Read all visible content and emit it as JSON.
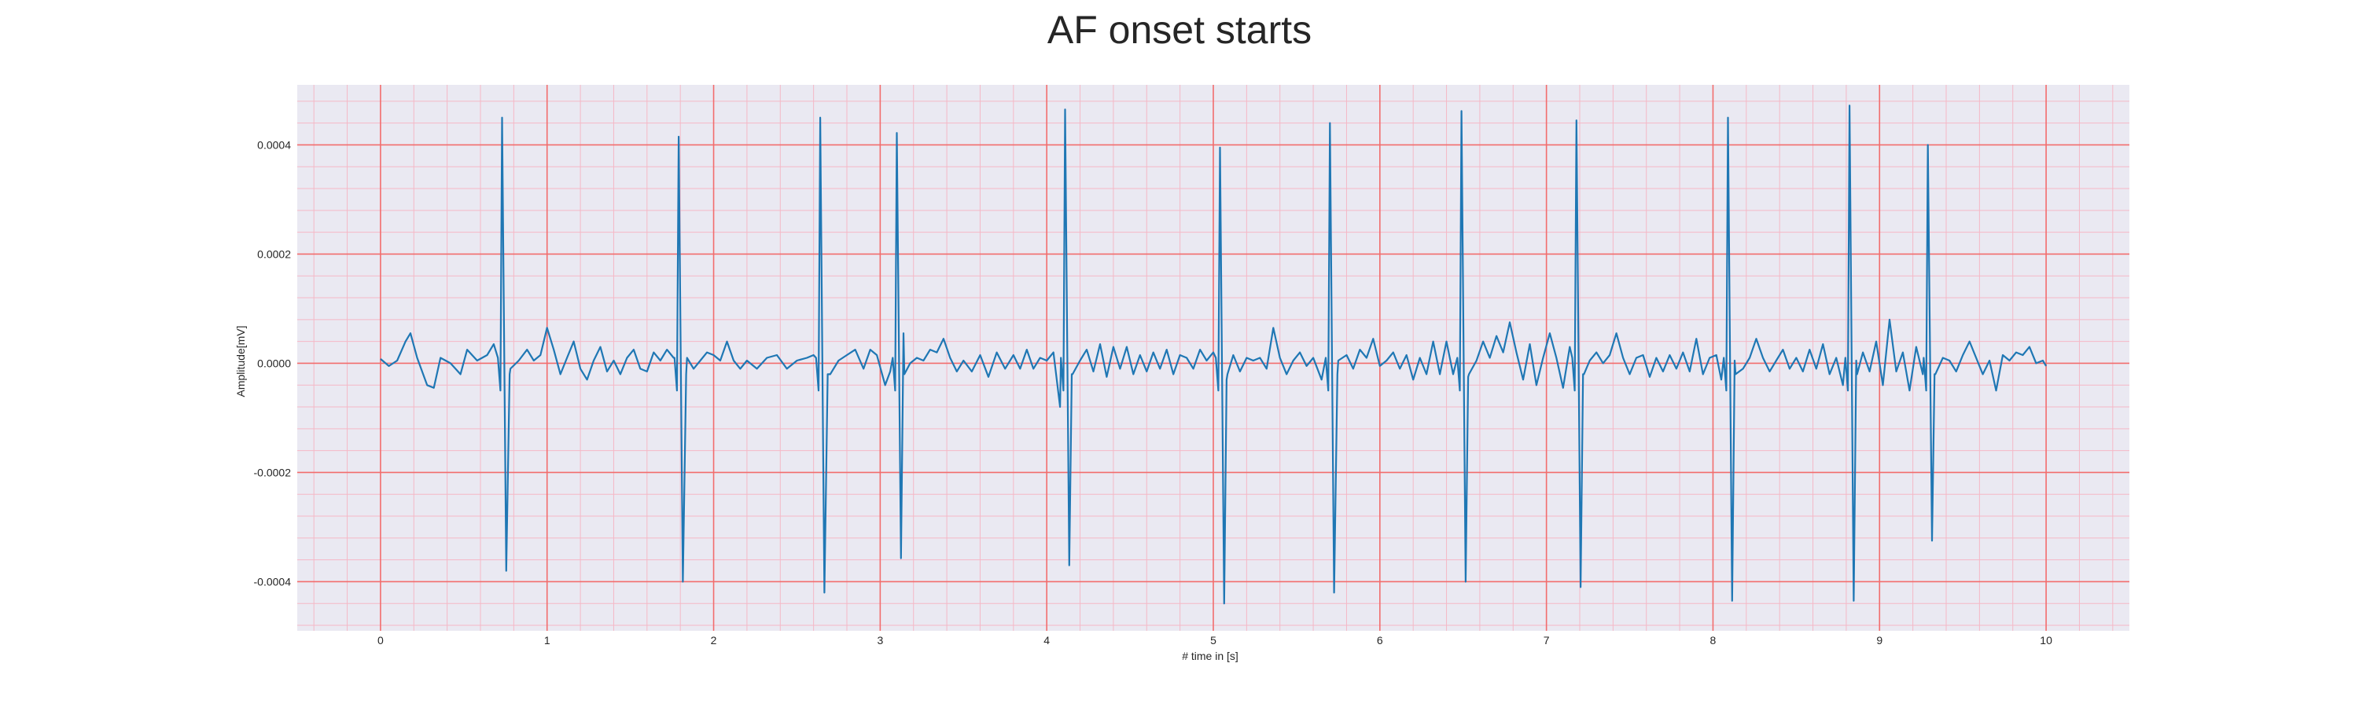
{
  "chart_data": {
    "type": "line",
    "title": "AF onset starts",
    "xlabel": "# time in [s]",
    "ylabel": "Amplitude[mV]",
    "xlim": [
      -0.5,
      10.5
    ],
    "ylim": [
      -0.00049,
      0.00051
    ],
    "xticks": [
      0,
      1,
      2,
      3,
      4,
      5,
      6,
      7,
      8,
      9,
      10
    ],
    "xtick_labels": [
      "0",
      "1",
      "2",
      "3",
      "4",
      "5",
      "6",
      "7",
      "8",
      "9",
      "10"
    ],
    "yticks": [
      -0.0004,
      -0.0002,
      0.0,
      0.0002,
      0.0004
    ],
    "ytick_labels": [
      "-0.0004",
      "-0.0002",
      "0.0000",
      "0.0002",
      "0.0004"
    ],
    "grid": true,
    "background_color": "#eae9f2",
    "major_grid_color": "#f26d6d",
    "minor_grid_color": "#f5b8c6",
    "series": [
      {
        "color": "#1f77b4",
        "peaks": [
          {
            "t": 0.73,
            "max": 0.00045,
            "min": -0.00038
          },
          {
            "t": 1.79,
            "max": 0.000415,
            "min": -0.0004
          },
          {
            "t": 2.64,
            "max": 0.00045,
            "min": -0.00042
          },
          {
            "t": 3.1,
            "max": 0.000422,
            "min": -0.000357
          },
          {
            "t": 4.11,
            "max": 0.000465,
            "min": -0.00037
          },
          {
            "t": 5.04,
            "max": 0.000395,
            "min": -0.00044
          },
          {
            "t": 5.7,
            "max": 0.00044,
            "min": -0.00042
          },
          {
            "t": 6.49,
            "max": 0.000462,
            "min": -0.0004
          },
          {
            "t": 7.18,
            "max": 0.000445,
            "min": -0.00041
          },
          {
            "t": 8.09,
            "max": 0.00045,
            "min": -0.000435
          },
          {
            "t": 8.82,
            "max": 0.000472,
            "min": -0.000435
          },
          {
            "t": 9.29,
            "max": 0.0004,
            "min": -0.000325
          }
        ],
        "baseline_points": [
          [
            0.0,
            8e-06
          ],
          [
            0.05,
            -5e-06
          ],
          [
            0.1,
            5e-06
          ],
          [
            0.15,
            4e-05
          ],
          [
            0.18,
            5.5e-05
          ],
          [
            0.22,
            1e-05
          ],
          [
            0.28,
            -4e-05
          ],
          [
            0.32,
            -4.5e-05
          ],
          [
            0.36,
            1e-05
          ],
          [
            0.42,
            0.0
          ],
          [
            0.48,
            -2e-05
          ],
          [
            0.52,
            2.5e-05
          ],
          [
            0.58,
            5e-06
          ],
          [
            0.64,
            1.5e-05
          ],
          [
            0.68,
            3.5e-05
          ],
          [
            0.78,
            -1e-05
          ],
          [
            0.83,
            5e-06
          ],
          [
            0.88,
            2.5e-05
          ],
          [
            0.92,
            5e-06
          ],
          [
            0.96,
            1.5e-05
          ],
          [
            1.0,
            6.5e-05
          ],
          [
            1.04,
            2.5e-05
          ],
          [
            1.08,
            -2e-05
          ],
          [
            1.12,
            1e-05
          ],
          [
            1.16,
            4e-05
          ],
          [
            1.2,
            -1e-05
          ],
          [
            1.24,
            -3e-05
          ],
          [
            1.28,
            5e-06
          ],
          [
            1.32,
            3e-05
          ],
          [
            1.36,
            -1.5e-05
          ],
          [
            1.4,
            5e-06
          ],
          [
            1.44,
            -2e-05
          ],
          [
            1.48,
            1e-05
          ],
          [
            1.52,
            2.5e-05
          ],
          [
            1.56,
            -1e-05
          ],
          [
            1.6,
            -1.5e-05
          ],
          [
            1.64,
            2e-05
          ],
          [
            1.68,
            5e-06
          ],
          [
            1.72,
            2.5e-05
          ],
          [
            1.76,
            1e-05
          ],
          [
            1.84,
            1e-05
          ],
          [
            1.88,
            -1e-05
          ],
          [
            1.92,
            5e-06
          ],
          [
            1.96,
            2e-05
          ],
          [
            2.0,
            1.5e-05
          ],
          [
            2.04,
            5e-06
          ],
          [
            2.08,
            4e-05
          ],
          [
            2.12,
            5e-06
          ],
          [
            2.16,
            -1e-05
          ],
          [
            2.2,
            5e-06
          ],
          [
            2.26,
            -1e-05
          ],
          [
            2.32,
            1e-05
          ],
          [
            2.38,
            1.5e-05
          ],
          [
            2.44,
            -1e-05
          ],
          [
            2.5,
            5e-06
          ],
          [
            2.56,
            1e-05
          ],
          [
            2.6,
            1.5e-05
          ],
          [
            2.7,
            -2e-05
          ],
          [
            2.75,
            5e-06
          ],
          [
            2.8,
            1.5e-05
          ],
          [
            2.85,
            2.5e-05
          ],
          [
            2.9,
            -1e-05
          ],
          [
            2.94,
            2.5e-05
          ],
          [
            2.98,
            1.5e-05
          ],
          [
            3.03,
            -4e-05
          ],
          [
            3.06,
            -1.5e-05
          ],
          [
            3.14,
            5.5e-05
          ],
          [
            3.18,
            0.0
          ],
          [
            3.22,
            1e-05
          ],
          [
            3.26,
            5e-06
          ],
          [
            3.3,
            2.5e-05
          ],
          [
            3.34,
            2e-05
          ],
          [
            3.38,
            4.5e-05
          ],
          [
            3.42,
            1e-05
          ],
          [
            3.46,
            -1.5e-05
          ],
          [
            3.5,
            5e-06
          ],
          [
            3.55,
            -1.5e-05
          ],
          [
            3.6,
            1.5e-05
          ],
          [
            3.65,
            -2.5e-05
          ],
          [
            3.7,
            2e-05
          ],
          [
            3.75,
            -1e-05
          ],
          [
            3.8,
            1.5e-05
          ],
          [
            3.84,
            -1e-05
          ],
          [
            3.88,
            2.5e-05
          ],
          [
            3.92,
            -1e-05
          ],
          [
            3.96,
            1e-05
          ],
          [
            4.0,
            5e-06
          ],
          [
            4.04,
            2e-05
          ],
          [
            4.08,
            -8e-05
          ],
          [
            4.15,
            -2e-05
          ],
          [
            4.2,
            5e-06
          ],
          [
            4.24,
            2.5e-05
          ],
          [
            4.28,
            -1.5e-05
          ],
          [
            4.32,
            3.5e-05
          ],
          [
            4.36,
            -2.5e-05
          ],
          [
            4.4,
            3e-05
          ],
          [
            4.44,
            -1e-05
          ],
          [
            4.48,
            3e-05
          ],
          [
            4.52,
            -2e-05
          ],
          [
            4.56,
            1.5e-05
          ],
          [
            4.6,
            -1.5e-05
          ],
          [
            4.64,
            2e-05
          ],
          [
            4.68,
            -1e-05
          ],
          [
            4.72,
            2.5e-05
          ],
          [
            4.76,
            -2e-05
          ],
          [
            4.8,
            1.5e-05
          ],
          [
            4.84,
            1e-05
          ],
          [
            4.88,
            -1e-05
          ],
          [
            4.92,
            2.5e-05
          ],
          [
            4.96,
            5e-06
          ],
          [
            5.0,
            2e-05
          ],
          [
            5.08,
            -3e-05
          ],
          [
            5.12,
            1.5e-05
          ],
          [
            5.16,
            -1.5e-05
          ],
          [
            5.2,
            1e-05
          ],
          [
            5.24,
            5e-06
          ],
          [
            5.28,
            1e-05
          ],
          [
            5.32,
            -1e-05
          ],
          [
            5.36,
            6.5e-05
          ],
          [
            5.4,
            1e-05
          ],
          [
            5.44,
            -2e-05
          ],
          [
            5.48,
            5e-06
          ],
          [
            5.52,
            2e-05
          ],
          [
            5.56,
            -5e-06
          ],
          [
            5.6,
            1e-05
          ],
          [
            5.65,
            -3e-05
          ],
          [
            5.75,
            5e-06
          ],
          [
            5.8,
            1.5e-05
          ],
          [
            5.84,
            -1e-05
          ],
          [
            5.88,
            2.5e-05
          ],
          [
            5.92,
            1e-05
          ],
          [
            5.96,
            4.5e-05
          ],
          [
            6.0,
            -5e-06
          ],
          [
            6.04,
            5e-06
          ],
          [
            6.08,
            2e-05
          ],
          [
            6.12,
            -1e-05
          ],
          [
            6.16,
            1.5e-05
          ],
          [
            6.2,
            -3e-05
          ],
          [
            6.24,
            1e-05
          ],
          [
            6.28,
            -2e-05
          ],
          [
            6.32,
            4e-05
          ],
          [
            6.36,
            -2e-05
          ],
          [
            6.4,
            4e-05
          ],
          [
            6.44,
            -2e-05
          ],
          [
            6.53,
            -2.5e-05
          ],
          [
            6.58,
            5e-06
          ],
          [
            6.62,
            4e-05
          ],
          [
            6.66,
            1e-05
          ],
          [
            6.7,
            5e-05
          ],
          [
            6.74,
            2e-05
          ],
          [
            6.78,
            7.5e-05
          ],
          [
            6.82,
            2e-05
          ],
          [
            6.86,
            -3e-05
          ],
          [
            6.9,
            3.5e-05
          ],
          [
            6.94,
            -4e-05
          ],
          [
            6.98,
            1e-05
          ],
          [
            7.02,
            5.5e-05
          ],
          [
            7.06,
            1e-05
          ],
          [
            7.1,
            -4.5e-05
          ],
          [
            7.14,
            3e-05
          ],
          [
            7.22,
            -2e-05
          ],
          [
            7.26,
            5e-06
          ],
          [
            7.3,
            2e-05
          ],
          [
            7.34,
            0.0
          ],
          [
            7.38,
            1.5e-05
          ],
          [
            7.42,
            5.5e-05
          ],
          [
            7.46,
            1e-05
          ],
          [
            7.5,
            -2e-05
          ],
          [
            7.54,
            1e-05
          ],
          [
            7.58,
            1.5e-05
          ],
          [
            7.62,
            -2.5e-05
          ],
          [
            7.66,
            1e-05
          ],
          [
            7.7,
            -1.5e-05
          ],
          [
            7.74,
            1.5e-05
          ],
          [
            7.78,
            -1e-05
          ],
          [
            7.82,
            2e-05
          ],
          [
            7.86,
            -1.5e-05
          ],
          [
            7.9,
            4.5e-05
          ],
          [
            7.94,
            -2e-05
          ],
          [
            7.98,
            1e-05
          ],
          [
            8.02,
            1.5e-05
          ],
          [
            8.05,
            -3e-05
          ],
          [
            8.13,
            5e-06
          ],
          [
            8.18,
            -1e-05
          ],
          [
            8.22,
            1e-05
          ],
          [
            8.26,
            4.5e-05
          ],
          [
            8.3,
            1e-05
          ],
          [
            8.34,
            -1.5e-05
          ],
          [
            8.38,
            5e-06
          ],
          [
            8.42,
            2.5e-05
          ],
          [
            8.46,
            -1e-05
          ],
          [
            8.5,
            1e-05
          ],
          [
            8.54,
            -1.5e-05
          ],
          [
            8.58,
            2.5e-05
          ],
          [
            8.62,
            -1e-05
          ],
          [
            8.66,
            3.5e-05
          ],
          [
            8.7,
            -2e-05
          ],
          [
            8.74,
            1e-05
          ],
          [
            8.78,
            -4e-05
          ],
          [
            8.86,
            5e-06
          ],
          [
            8.9,
            2e-05
          ],
          [
            8.94,
            -1.5e-05
          ],
          [
            8.98,
            4e-05
          ],
          [
            9.02,
            -4e-05
          ],
          [
            9.06,
            8e-05
          ],
          [
            9.1,
            -1.5e-05
          ],
          [
            9.14,
            2e-05
          ],
          [
            9.18,
            -5e-05
          ],
          [
            9.22,
            3e-05
          ],
          [
            9.26,
            -2e-05
          ],
          [
            9.33,
            -2e-05
          ],
          [
            9.38,
            1e-05
          ],
          [
            9.42,
            5e-06
          ],
          [
            9.46,
            -1.5e-05
          ],
          [
            9.5,
            1.5e-05
          ],
          [
            9.54,
            4e-05
          ],
          [
            9.58,
            1e-05
          ],
          [
            9.62,
            -2e-05
          ],
          [
            9.66,
            5e-06
          ],
          [
            9.7,
            -5e-05
          ],
          [
            9.74,
            1.5e-05
          ],
          [
            9.78,
            5e-06
          ],
          [
            9.82,
            2e-05
          ],
          [
            9.86,
            1.5e-05
          ],
          [
            9.9,
            3e-05
          ],
          [
            9.94,
            0.0
          ],
          [
            9.98,
            5e-06
          ],
          [
            10.0,
            -5e-06
          ]
        ]
      }
    ]
  }
}
